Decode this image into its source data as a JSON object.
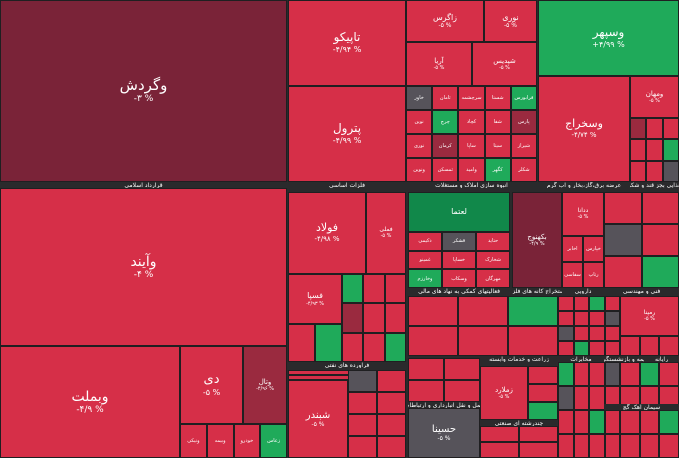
{
  "colors": {
    "red": "#d62f48",
    "dark_red": "#9a2a3f",
    "maroon": "#7a2338",
    "green": "#1faa5a",
    "deep_green": "#11884a",
    "gray": "#56535a",
    "sector_bg": "#2a2a2c"
  },
  "chart_data": {
    "type": "heatmap",
    "tiles": [
      {
        "name": "وگردش",
        "value": "-۳ %",
        "tone": "maroon"
      },
      {
        "name": "وآیند",
        "value": "-۴ %",
        "tone": "red"
      },
      {
        "name": "وبملت",
        "value": "-۴/۹ %",
        "tone": "red"
      },
      {
        "name": "دی",
        "value": "-۵ %",
        "tone": "red"
      },
      {
        "name": "وتال",
        "value": "-۴/۹۶ %",
        "tone": "dark_red"
      },
      {
        "name": "تاپیکو",
        "value": "-۴/۹۴ %",
        "tone": "red"
      },
      {
        "name": "پترول",
        "value": "-۴/۹۹ %",
        "tone": "red"
      },
      {
        "name": "زاگرس",
        "value": "-۵ %",
        "tone": "red"
      },
      {
        "name": "نوری",
        "value": "-۵ %",
        "tone": "red"
      },
      {
        "name": "آریا",
        "value": "-۵ %",
        "tone": "red"
      },
      {
        "name": "شپدیس",
        "value": "-۵ %",
        "tone": "red"
      },
      {
        "name": "وسپهر",
        "value": "+۴/۹۹ %",
        "tone": "green"
      },
      {
        "name": "وسخراج",
        "value": "-۴/۷۴ %",
        "tone": "red"
      },
      {
        "name": "ومهان",
        "value": "-۵ %",
        "tone": "red"
      },
      {
        "name": "فولاد",
        "value": "-۴/۹۸ %",
        "tone": "red"
      },
      {
        "name": "فملی",
        "value": "-۵ %",
        "tone": "red"
      },
      {
        "name": "لعتما",
        "value": "",
        "tone": "deep_green"
      },
      {
        "name": "بکهنوج",
        "value": "-۴/۹ %",
        "tone": "maroon"
      },
      {
        "name": "ددانا",
        "value": "-۵ %",
        "tone": "red"
      },
      {
        "name": "فسپا",
        "value": "-۴/۹۳ %",
        "tone": "red"
      },
      {
        "name": "فارس",
        "value": "-۵ %",
        "tone": "red"
      },
      {
        "name": "شبندر",
        "value": "-۵ %",
        "tone": "red"
      },
      {
        "name": "حسینا",
        "value": "-۵ %",
        "tone": "gray"
      },
      {
        "name": "زملارد",
        "value": "-۵ %",
        "tone": "red"
      },
      {
        "name": "رمپنا",
        "value": "-۵ %",
        "tone": "red"
      }
    ],
    "sectors": [
      "قرارداد اسلامی",
      "انبوه سازی املاک و مستغلات",
      "عرضه برق،گاز،بخار و آب گرم",
      "غذایی بجز قند و شکر",
      "فعالیتهای کمکی به نهاد های مالی",
      "استخراج کانه های فلزی",
      "دارویی",
      "فلزات اساسی",
      "فراورده های نفتی",
      "زراعت و خدمات وابسته",
      "مخابرات",
      "فنی و مهندسی",
      "حمل و نقل انبارداری و ارتباطات",
      "چندرشته ای صنعتی",
      "بیمه و بازنشستگی",
      "رایانه",
      "سیمان آهک گچ"
    ],
    "small_labels": [
      "ونیکی",
      "وبیمه",
      "خودرو",
      "زعاس",
      "خاور",
      "ثامان",
      "سرچشمه",
      "شستا",
      "فرابورس",
      "نوین",
      "چرچ",
      "کچاد",
      "شفا",
      "پارس",
      "نوری",
      "کرمان",
      "ساپا",
      "سیتا",
      "شیراز",
      "ونوین",
      "ثمسکن",
      "وامید",
      "کگهر",
      "شکلر",
      "دکیمی",
      "قشکر",
      "حتاید",
      "غمینو",
      "خساپا",
      "شخارک",
      "وخارزم",
      "وسکاب",
      "مهرگان",
      "اخابر",
      "خپارس",
      "سفاسی",
      "رتاپ"
    ]
  }
}
